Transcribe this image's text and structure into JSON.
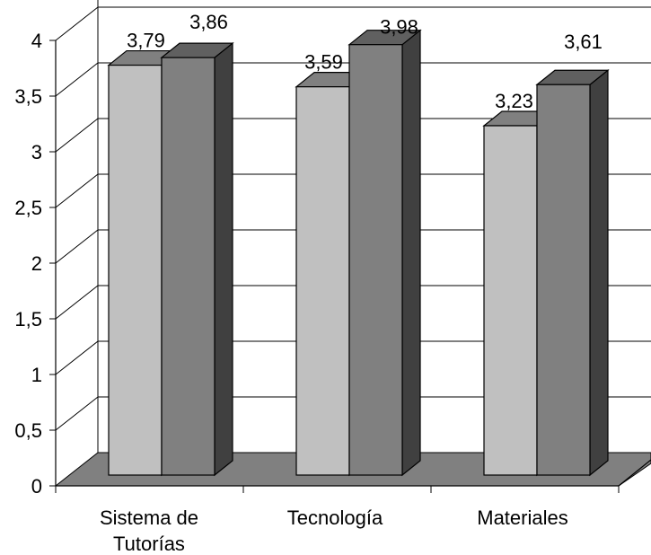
{
  "chart_data": {
    "type": "bar",
    "categories": [
      "Sistema de Tutorías",
      "Tecnología",
      "Materiales"
    ],
    "category_lines": [
      [
        "Sistema de",
        "Tutorías"
      ],
      [
        "Tecnología"
      ],
      [
        "Materiales"
      ]
    ],
    "series": [
      {
        "values": [
          3.79,
          3.59,
          3.23
        ],
        "color": "#c0c0c0"
      },
      {
        "values": [
          3.86,
          3.98,
          3.61
        ],
        "color": "#808080"
      }
    ],
    "data_labels": [
      [
        "3,79",
        "3,59",
        "3,23"
      ],
      [
        "3,86",
        "3,98",
        "3,61"
      ]
    ],
    "ylim": [
      0,
      4
    ],
    "yticks": [
      0,
      0.5,
      1,
      1.5,
      2,
      2.5,
      3,
      3.5,
      4
    ],
    "ytick_labels": [
      "0",
      "0,5",
      "1",
      "1,5",
      "2",
      "2,5",
      "3",
      "3,5",
      "4"
    ],
    "grid": true,
    "view": "3d",
    "legend": "none",
    "colors": {
      "floor": "#808080",
      "axis": "#000000",
      "bar_shade": "#404040"
    }
  }
}
